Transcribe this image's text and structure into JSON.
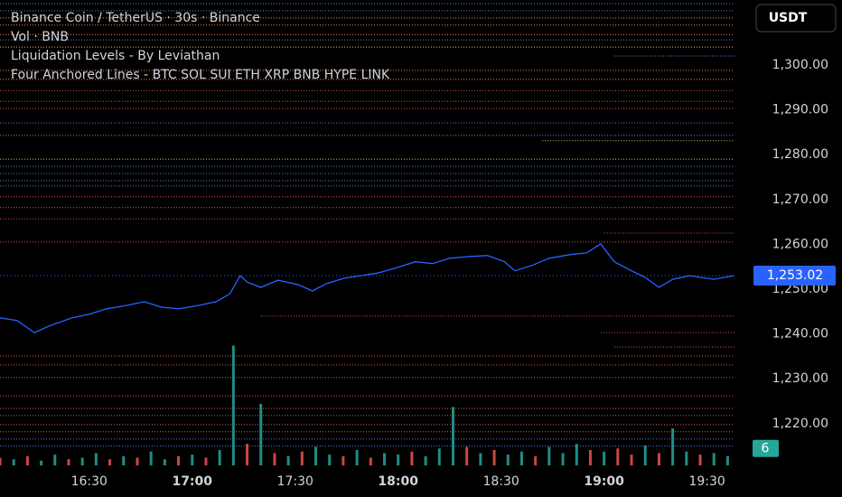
{
  "chart_data": {
    "type": "line",
    "currency": "USDT",
    "indicator": "Four Anchored Lines - BTC SOL SUI ETH XRP BNB HYPE LINK",
    "grid": false,
    "xlim": [
      "16:04",
      "19:38"
    ],
    "ylim": [
      1210.7,
      1314.5
    ],
    "xticks": [
      "16:30",
      "17:00",
      "17:30",
      "18:00",
      "18:30",
      "19:00",
      "19:30"
    ],
    "yticks": [
      {
        "value": 1220,
        "label": "1,220.00"
      },
      {
        "value": 1230,
        "label": "1,230.00"
      },
      {
        "value": 1240,
        "label": "1,240.00"
      },
      {
        "value": 1250,
        "label": "1,250.00"
      },
      {
        "value": 1260,
        "label": "1,260.00"
      },
      {
        "value": 1270,
        "label": "1,270.00"
      },
      {
        "value": 1280,
        "label": "1,280.00"
      },
      {
        "value": 1290,
        "label": "1,290.00"
      },
      {
        "value": 1300,
        "label": "1,300.00"
      }
    ],
    "x": [
      "16:04",
      "16:09",
      "16:14",
      "16:19",
      "16:25",
      "16:30",
      "16:35",
      "16:41",
      "16:46",
      "16:51",
      "16:56",
      "17:02",
      "17:07",
      "17:11",
      "17:14",
      "17:16",
      "17:20",
      "17:25",
      "17:31",
      "17:35",
      "17:39",
      "17:44",
      "17:49",
      "17:54",
      "18:00",
      "18:05",
      "18:10",
      "18:15",
      "18:21",
      "18:26",
      "18:31",
      "18:34",
      "18:39",
      "18:44",
      "18:50",
      "18:55",
      "18:59",
      "19:03",
      "19:08",
      "19:12",
      "19:16",
      "19:20",
      "19:25",
      "19:32",
      "19:38"
    ],
    "series": [
      {
        "name": "Binance Coin / TetherUS · 30s · Binance",
        "color": "#2962ff",
        "values": [
          1243.6,
          1243.0,
          1240.3,
          1242.0,
          1243.6,
          1244.4,
          1245.6,
          1246.4,
          1247.2,
          1246.0,
          1245.6,
          1246.4,
          1247.2,
          1249.0,
          1253.0,
          1251.6,
          1250.4,
          1252.0,
          1251.0,
          1249.6,
          1251.2,
          1252.4,
          1253.0,
          1253.6,
          1254.9,
          1256.1,
          1255.7,
          1256.9,
          1257.3,
          1257.5,
          1256.1,
          1254.1,
          1255.3,
          1256.9,
          1257.7,
          1258.1,
          1260.1,
          1256.1,
          1254.1,
          1252.6,
          1250.4,
          1252.2,
          1253.0,
          1252.2,
          1253.02
        ]
      }
    ],
    "price_label": {
      "value": 1253.02,
      "label": "1,253.02"
    },
    "volume": {
      "name": "Vol · BNB",
      "ylim": [
        0,
        100
      ],
      "x": [
        "16:04",
        "16:08",
        "16:12",
        "16:16",
        "16:20",
        "16:24",
        "16:28",
        "16:32",
        "16:36",
        "16:40",
        "16:44",
        "16:48",
        "16:52",
        "16:56",
        "17:00",
        "17:04",
        "17:08",
        "17:12",
        "17:16",
        "17:20",
        "17:24",
        "17:28",
        "17:32",
        "17:36",
        "17:40",
        "17:44",
        "17:48",
        "17:52",
        "17:56",
        "18:00",
        "18:04",
        "18:08",
        "18:12",
        "18:16",
        "18:20",
        "18:24",
        "18:28",
        "18:32",
        "18:36",
        "18:40",
        "18:44",
        "18:48",
        "18:52",
        "18:56",
        "19:00",
        "19:04",
        "19:08",
        "19:12",
        "19:16",
        "19:20",
        "19:24",
        "19:28",
        "19:32",
        "19:36"
      ],
      "values": [
        5,
        4,
        6,
        3,
        7,
        4,
        5,
        8,
        4,
        6,
        5,
        9,
        4,
        6,
        7,
        5,
        10,
        78,
        14,
        40,
        8,
        6,
        9,
        12,
        7,
        6,
        10,
        5,
        8,
        7,
        9,
        6,
        11,
        38,
        12,
        8,
        10,
        7,
        9,
        6,
        12,
        8,
        14,
        10,
        9,
        11,
        7,
        13,
        8,
        24,
        9,
        7,
        8,
        6
      ],
      "colors": [
        "#ef5350",
        "#26a69a",
        "#ef5350",
        "#26a69a",
        "#26a69a",
        "#ef5350",
        "#26a69a",
        "#26a69a",
        "#ef5350",
        "#26a69a",
        "#ef5350",
        "#26a69a",
        "#26a69a",
        "#ef5350",
        "#26a69a",
        "#ef5350",
        "#26a69a",
        "#26a69a",
        "#ef5350",
        "#26a69a",
        "#ef5350",
        "#26a69a",
        "#ef5350",
        "#26a69a",
        "#26a69a",
        "#ef5350",
        "#26a69a",
        "#ef5350",
        "#26a69a",
        "#26a69a",
        "#ef5350",
        "#26a69a",
        "#26a69a",
        "#26a69a",
        "#ef5350",
        "#26a69a",
        "#ef5350",
        "#26a69a",
        "#26a69a",
        "#ef5350",
        "#26a69a",
        "#26a69a",
        "#26a69a",
        "#ef5350",
        "#26a69a",
        "#ef5350",
        "#ef5350",
        "#26a69a",
        "#ef5350",
        "#26a69a",
        "#26a69a",
        "#ef5350",
        "#26a69a",
        "#26a69a"
      ],
      "last_label": 6,
      "last_color": "#26a69a"
    },
    "levels": {
      "name": "Liquidation Levels - By Leviathan",
      "items": [
        {
          "price": 1313.7,
          "color": "#5b7fe0",
          "from": "16:04"
        },
        {
          "price": 1312.1,
          "color": "#5b7fe0",
          "from": "16:04"
        },
        {
          "price": 1310.5,
          "color": "#f0884a",
          "from": "16:04"
        },
        {
          "price": 1308.9,
          "color": "#f0884a",
          "from": "16:04"
        },
        {
          "price": 1306.8,
          "color": "#f0884a",
          "from": "16:04"
        },
        {
          "price": 1305.6,
          "color": "#5b7fe0",
          "from": "16:04"
        },
        {
          "price": 1304.0,
          "color": "#e8c24a",
          "from": "16:04"
        },
        {
          "price": 1302.0,
          "color": "#5b7fe0",
          "from": "19:03"
        },
        {
          "price": 1298.8,
          "color": "#f0884a",
          "from": "16:04"
        },
        {
          "price": 1296.8,
          "color": "#f0884a",
          "from": "16:04"
        },
        {
          "price": 1294.3,
          "color": "#e0584b",
          "from": "16:04"
        },
        {
          "price": 1291.9,
          "color": "#e0584b",
          "from": "16:04"
        },
        {
          "price": 1290.3,
          "color": "#e0584b",
          "from": "16:04"
        },
        {
          "price": 1287.1,
          "color": "#5b7fe0",
          "from": "16:04"
        },
        {
          "price": 1284.3,
          "color": "#5b7fe0",
          "from": "16:04"
        },
        {
          "price": 1283.1,
          "color": "#e8c24a",
          "from": "18:42"
        },
        {
          "price": 1279.0,
          "color": "#e8c24a",
          "from": "16:04"
        },
        {
          "price": 1277.4,
          "color": "#5b7fe0",
          "from": "16:04"
        },
        {
          "price": 1275.8,
          "color": "#5b7fe0",
          "from": "16:04"
        },
        {
          "price": 1274.2,
          "color": "#5b7fe0",
          "from": "16:04"
        },
        {
          "price": 1273.0,
          "color": "#5b7fe0",
          "from": "16:04"
        },
        {
          "price": 1270.6,
          "color": "#e0584b",
          "from": "16:04"
        },
        {
          "price": 1268.2,
          "color": "#e0584b",
          "from": "16:04"
        },
        {
          "price": 1265.7,
          "color": "#e0584b",
          "from": "16:04"
        },
        {
          "price": 1262.5,
          "color": "#e0584b",
          "from": "19:00"
        },
        {
          "price": 1260.5,
          "color": "#e0584b",
          "from": "16:04"
        },
        {
          "price": 1244.0,
          "color": "#e0584b",
          "from": "17:20"
        },
        {
          "price": 1240.3,
          "color": "#e0584b",
          "from": "18:59"
        },
        {
          "price": 1237.1,
          "color": "#e0584b",
          "from": "19:03"
        },
        {
          "price": 1235.1,
          "color": "#e0584b",
          "from": "16:04"
        },
        {
          "price": 1233.1,
          "color": "#e0584b",
          "from": "16:04"
        },
        {
          "price": 1230.3,
          "color": "#e0584b",
          "from": "16:04"
        },
        {
          "price": 1226.2,
          "color": "#e0584b",
          "from": "16:04"
        },
        {
          "price": 1223.4,
          "color": "#e0584b",
          "from": "16:04"
        },
        {
          "price": 1221.8,
          "color": "#e0584b",
          "from": "16:04"
        },
        {
          "price": 1219.8,
          "color": "#e0584b",
          "from": "16:04"
        },
        {
          "price": 1218.2,
          "color": "#e0584b",
          "from": "16:04"
        },
        {
          "price": 1216.6,
          "color": "#5b7fe0",
          "from": "16:04"
        },
        {
          "price": 1215.0,
          "color": "#5b7fe0",
          "from": "16:04"
        }
      ]
    }
  }
}
